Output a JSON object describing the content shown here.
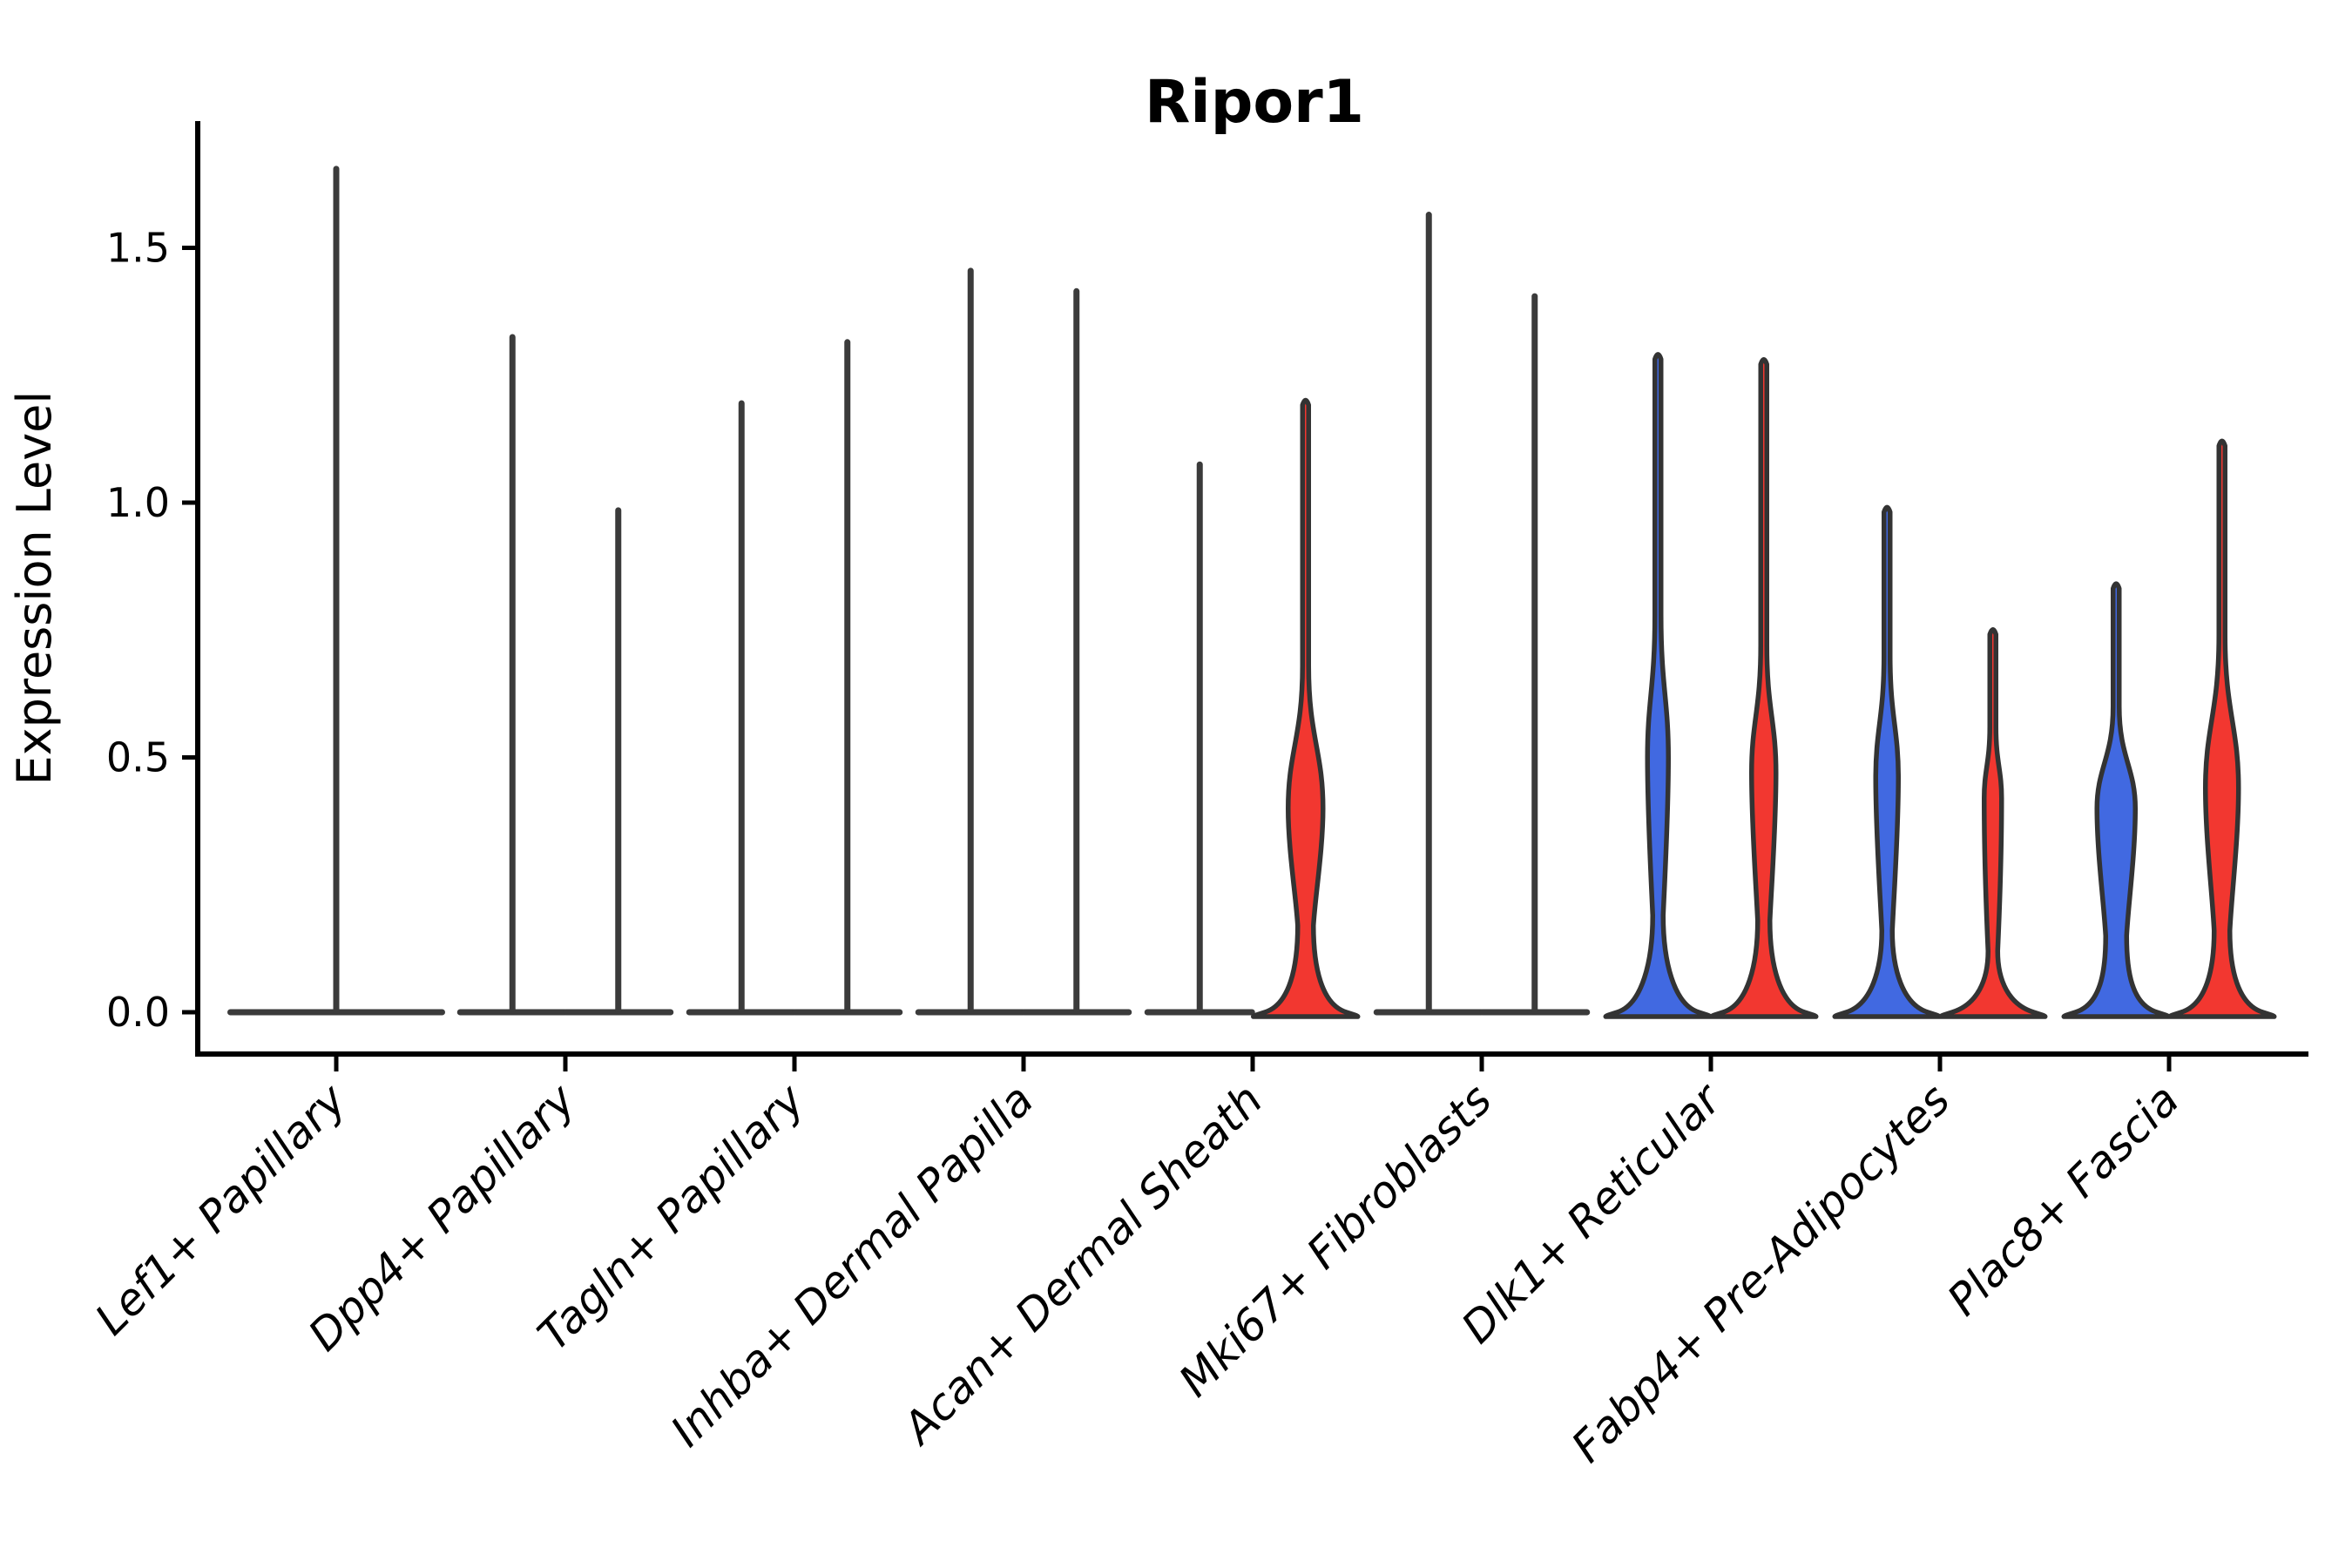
{
  "title": "Ripor1",
  "axes": {
    "y_label": "Expression Level",
    "y_ticks": [
      0.0,
      0.5,
      1.0,
      1.5
    ],
    "y_tick_labels": [
      "0.0",
      "0.5",
      "1.0",
      "1.5"
    ]
  },
  "colors": {
    "group1_fill": "#4169E1",
    "group2_fill": "#F23730",
    "violin_outline": "#333333",
    "flat_violin": "#3B3B3B",
    "axis": "#000000",
    "background": "#FFFFFF"
  },
  "chart_data": {
    "type": "violin",
    "title": "Ripor1",
    "ylabel": "Expression Level",
    "ylim": [
      -0.08,
      1.75
    ],
    "grid": false,
    "legend": "none (split violin: left=blue group, right=red group)",
    "categories": [
      {
        "label": "Lef1+ Papillary",
        "violins": [
          {
            "side": "full",
            "group": "single",
            "color": "none",
            "max_expression": 1.66,
            "distribution": "all near zero",
            "shape": null
          }
        ]
      },
      {
        "label": "Dpp4+ Papillary",
        "violins": [
          {
            "side": "left",
            "group": "blue",
            "color": "none",
            "max_expression": 1.33,
            "distribution": "all near zero",
            "shape": null
          },
          {
            "side": "right",
            "group": "red",
            "color": "none",
            "max_expression": 0.99,
            "distribution": "all near zero",
            "shape": null
          }
        ]
      },
      {
        "label": "Tagln+ Papillary",
        "violins": [
          {
            "side": "left",
            "group": "blue",
            "color": "none",
            "max_expression": 1.2,
            "distribution": "all near zero",
            "shape": null
          },
          {
            "side": "right",
            "group": "red",
            "color": "none",
            "max_expression": 1.32,
            "distribution": "all near zero",
            "shape": null
          }
        ]
      },
      {
        "label": "Inhba+ Dermal Papilla",
        "violins": [
          {
            "side": "left",
            "group": "blue",
            "color": "none",
            "max_expression": 1.46,
            "distribution": "all near zero",
            "shape": null
          },
          {
            "side": "right",
            "group": "red",
            "color": "none",
            "max_expression": 1.42,
            "distribution": "all near zero",
            "shape": null
          }
        ]
      },
      {
        "label": "Acan+ Dermal Sheath",
        "violins": [
          {
            "side": "left",
            "group": "blue",
            "color": "none",
            "max_expression": 1.08,
            "distribution": "all near zero",
            "shape": null
          },
          {
            "side": "right",
            "group": "red",
            "color": "#F23730",
            "max_expression": 1.2,
            "distribution": "bimodal: mass at 0 and bulge ~0.2-0.65",
            "shape": {
              "body_top": 0.68,
              "widest_at": 0.4,
              "widest_hw": 20,
              "neck_at": 0.17,
              "neck_hw": 9
            }
          }
        ]
      },
      {
        "label": "Mki67+ Fibroblasts",
        "violins": [
          {
            "side": "left",
            "group": "blue",
            "color": "none",
            "max_expression": 1.57,
            "distribution": "all near zero",
            "shape": null
          },
          {
            "side": "right",
            "group": "red",
            "color": "none",
            "max_expression": 1.41,
            "distribution": "all near zero",
            "shape": null
          }
        ]
      },
      {
        "label": "Dlk1+ Reticular",
        "violins": [
          {
            "side": "left",
            "group": "blue",
            "color": "#4169E1",
            "max_expression": 1.29,
            "distribution": "bimodal: mass at 0 and slim bulge ~0.25-0.75",
            "shape": {
              "body_top": 0.78,
              "widest_at": 0.5,
              "widest_hw": 12,
              "neck_at": 0.19,
              "neck_hw": 6
            }
          },
          {
            "side": "right",
            "group": "red",
            "color": "#F23730",
            "max_expression": 1.28,
            "distribution": "bimodal: mass at 0 and slim bulge ~0.25-0.72",
            "shape": {
              "body_top": 0.72,
              "widest_at": 0.47,
              "widest_hw": 14,
              "neck_at": 0.18,
              "neck_hw": 7
            }
          }
        ]
      },
      {
        "label": "Fabp4+ Pre-Adipocytes",
        "violins": [
          {
            "side": "left",
            "group": "blue",
            "color": "#4169E1",
            "max_expression": 0.99,
            "distribution": "bimodal: mass at 0 and slim bulge ~0.2-0.70",
            "shape": {
              "body_top": 0.7,
              "widest_at": 0.46,
              "widest_hw": 13,
              "neck_at": 0.16,
              "neck_hw": 6
            }
          },
          {
            "side": "right",
            "group": "red",
            "color": "#F23730",
            "max_expression": 0.75,
            "distribution": "bimodal: mass at 0 and small bulge ~0.25-0.56",
            "shape": {
              "body_top": 0.56,
              "widest_at": 0.42,
              "widest_hw": 10,
              "neck_at": 0.12,
              "neck_hw": 5.5
            }
          }
        ]
      },
      {
        "label": "Plac8+ Fascia",
        "violins": [
          {
            "side": "left",
            "group": "blue",
            "color": "#4169E1",
            "max_expression": 0.84,
            "distribution": "bimodal: mass at 0 and wide bulge ~0.2-0.60",
            "shape": {
              "body_top": 0.6,
              "widest_at": 0.4,
              "widest_hw": 22,
              "neck_at": 0.15,
              "neck_hw": 12
            }
          },
          {
            "side": "right",
            "group": "red",
            "color": "#F23730",
            "max_expression": 1.12,
            "distribution": "bimodal: mass at 0 and bulge ~0.2-0.74",
            "shape": {
              "body_top": 0.74,
              "widest_at": 0.44,
              "widest_hw": 19,
              "neck_at": 0.16,
              "neck_hw": 9
            }
          }
        ]
      }
    ]
  }
}
